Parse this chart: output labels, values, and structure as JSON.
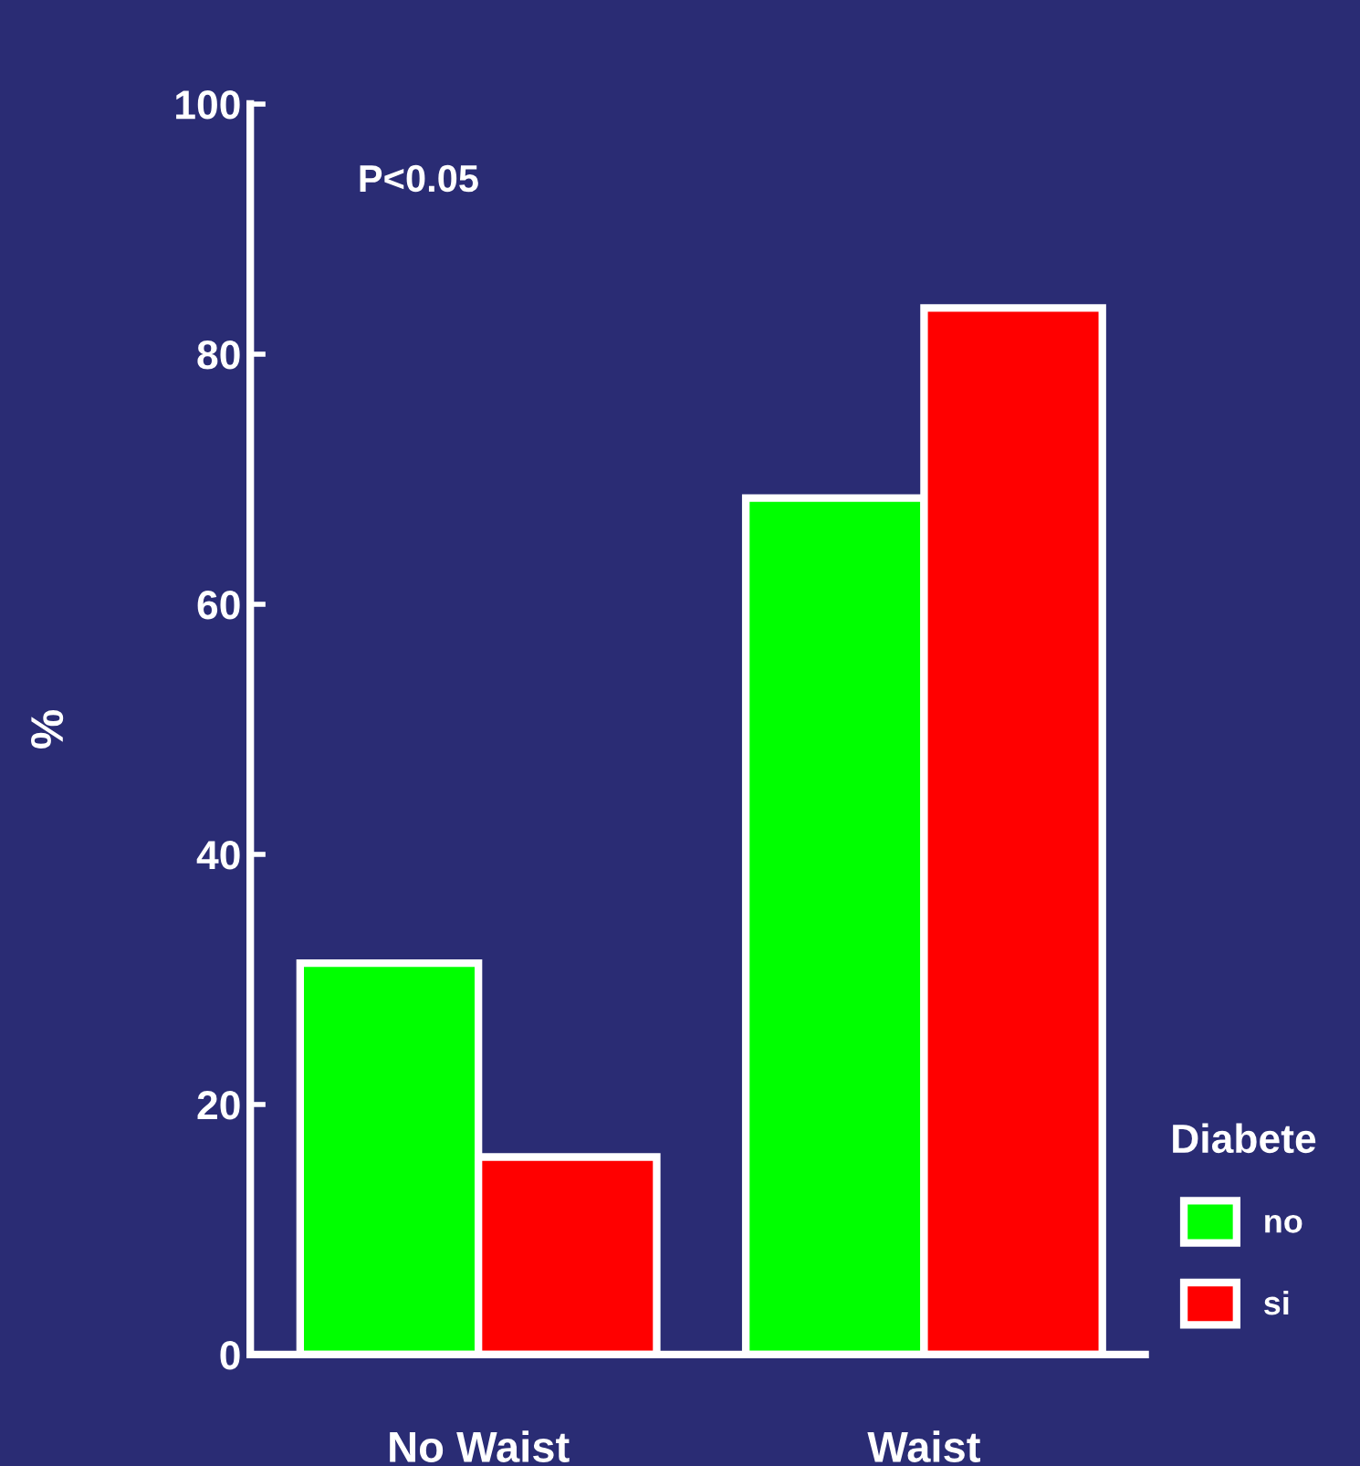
{
  "chart_data": {
    "type": "bar",
    "ylabel": "%",
    "categories": [
      "No Waist",
      "Waist"
    ],
    "series": [
      {
        "name": "no",
        "color": "#00ff00",
        "values": [
          31.3,
          68.5
        ]
      },
      {
        "name": "si",
        "color": "#ff0000",
        "values": [
          15.8,
          83.7
        ]
      }
    ],
    "ylim": [
      0,
      100
    ],
    "yticks": [
      0,
      20,
      40,
      60,
      80,
      100
    ],
    "legend": "bottom right",
    "legend_title": "Diabete",
    "grid": false,
    "annotations": [
      "P<0.05"
    ]
  }
}
